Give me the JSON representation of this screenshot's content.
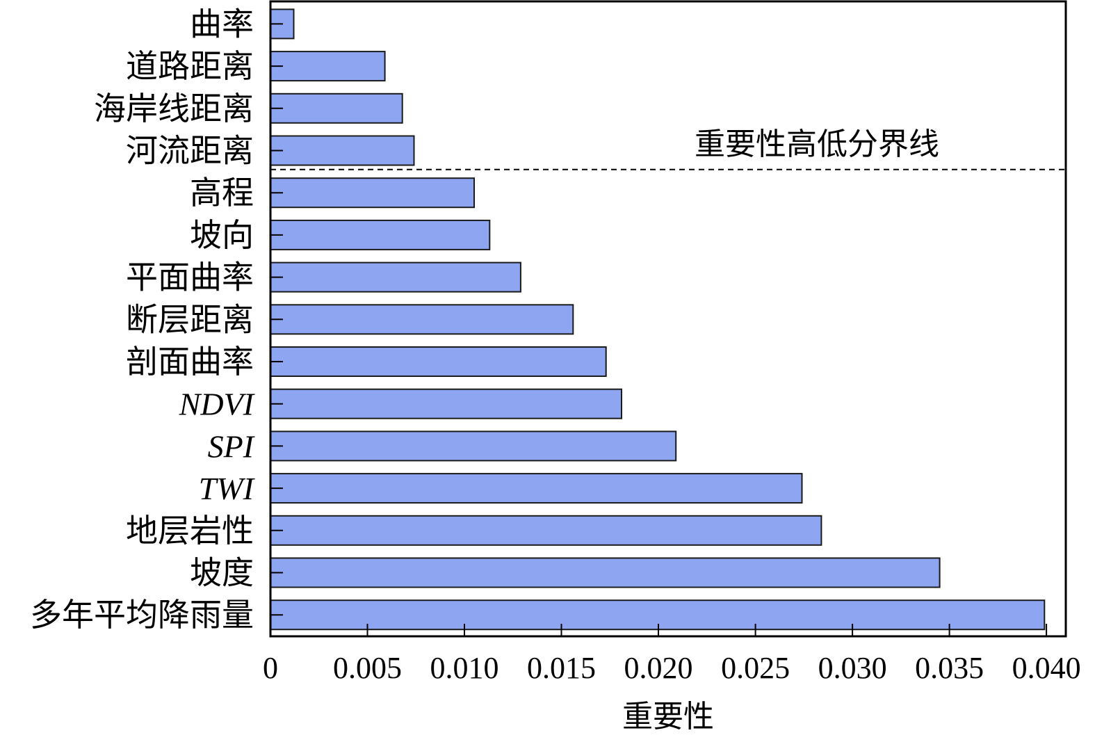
{
  "chart_data": {
    "type": "bar",
    "orientation": "horizontal",
    "categories": [
      "曲率",
      "道路距离",
      "海岸线距离",
      "河流距离",
      "高程",
      "坡向",
      "平面曲率",
      "断层距离",
      "剖面曲率",
      "NDVI",
      "SPI",
      "TWI",
      "地层岩性",
      "坡度",
      "多年平均降雨量"
    ],
    "italic_categories": [
      "NDVI",
      "SPI",
      "TWI"
    ],
    "values": [
      0.0012,
      0.0059,
      0.0068,
      0.0074,
      0.0105,
      0.0113,
      0.0129,
      0.0156,
      0.0173,
      0.0181,
      0.0209,
      0.0274,
      0.0284,
      0.0345,
      0.0399
    ],
    "xlabel": "重要性",
    "ylabel": "",
    "xlim": [
      0,
      0.041
    ],
    "xticks": [
      0,
      0.005,
      0.01,
      0.015,
      0.02,
      0.025,
      0.03,
      0.035,
      0.04
    ],
    "xtick_labels": [
      "0",
      "0.005",
      "0.010",
      "0.015",
      "0.020",
      "0.025",
      "0.030",
      "0.035",
      "0.040"
    ],
    "threshold_after_category": "河流距离",
    "threshold_label": "重要性高低分界线",
    "grid": false,
    "bar_color": "#8EA5F2",
    "bar_edge_color": "#1a1a1a"
  }
}
